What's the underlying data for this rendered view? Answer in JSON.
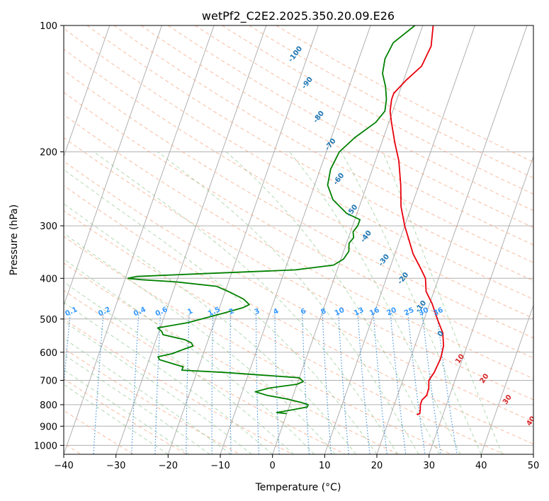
{
  "chart_data": {
    "type": "line",
    "title": "wetPf2_C2E2.2025.350.20.09.E26",
    "xlabel": "Temperature (°C)",
    "ylabel": "Pressure (hPa)",
    "xlim": [
      -40,
      50
    ],
    "ylim": [
      1050,
      100
    ],
    "yscale": "log",
    "skew": "skew-T log-P",
    "grid": true,
    "x_ticks": [
      "−40",
      "−30",
      "−20",
      "−10",
      "0",
      "10",
      "20",
      "30",
      "40",
      "50"
    ],
    "x_tick_values": [
      -40,
      -30,
      -20,
      -10,
      0,
      10,
      20,
      30,
      40,
      50
    ],
    "y_ticks": [
      "100",
      "200",
      "300",
      "400",
      "500",
      "600",
      "700",
      "800",
      "900",
      "1000"
    ],
    "y_tick_values": [
      100,
      200,
      300,
      400,
      500,
      600,
      700,
      800,
      900,
      1000
    ],
    "dry_adiabat_labels": [
      "-100",
      "-90",
      "-80",
      "-70",
      "-60",
      "-50",
      "-40",
      "-30",
      "-20",
      "-10",
      "0"
    ],
    "dry_adiabat_label_positions": [
      {
        "t": -22.5,
        "p": 117
      },
      {
        "t": -18.3,
        "p": 137
      },
      {
        "t": -13.8,
        "p": 165
      },
      {
        "t": -9.7,
        "p": 192
      },
      {
        "t": -5.8,
        "p": 232
      },
      {
        "t": -1.1,
        "p": 276
      },
      {
        "t": 3.3,
        "p": 318
      },
      {
        "t": 8.3,
        "p": 362
      },
      {
        "t": 13.2,
        "p": 400
      },
      {
        "t": 18.5,
        "p": 467
      },
      {
        "t": 24.1,
        "p": 542
      }
    ],
    "moist_adiabat_labels": [
      "10",
      "20",
      "30",
      "40"
    ],
    "moist_adiabat_label_positions": [
      {
        "t": 29.5,
        "p": 622
      },
      {
        "t": 35.5,
        "p": 693
      },
      {
        "t": 41.3,
        "p": 778
      },
      {
        "t": 47.3,
        "p": 875
      }
    ],
    "mixing_ratio_labels": [
      "0.1",
      "0.2",
      "0.4",
      "0.6",
      "1",
      "1.5",
      "2",
      "3",
      "4",
      "6",
      "8",
      "10",
      "13",
      "16",
      "20",
      "25",
      "30",
      "36"
    ],
    "mixing_ratio_values": [
      0.1,
      0.2,
      0.4,
      0.6,
      1,
      1.5,
      2,
      3,
      4,
      6,
      8,
      10,
      13,
      16,
      20,
      25,
      30,
      36
    ],
    "mixing_ratio_label_pressure": 488,
    "series": [
      {
        "color": "#e8000b",
        "points": [
          {
            "p": 100,
            "t": 2
          },
          {
            "p": 112,
            "t": 3
          },
          {
            "p": 125,
            "t": 2.5
          },
          {
            "p": 135,
            "t": 0.5
          },
          {
            "p": 145,
            "t": -1
          },
          {
            "p": 150,
            "t": -1
          },
          {
            "p": 160,
            "t": -0.5
          },
          {
            "p": 170,
            "t": 0.5
          },
          {
            "p": 190,
            "t": 2.5
          },
          {
            "p": 210,
            "t": 4.5
          },
          {
            "p": 240,
            "t": 6.5
          },
          {
            "p": 270,
            "t": 8
          },
          {
            "p": 300,
            "t": 10
          },
          {
            "p": 350,
            "t": 13.5
          },
          {
            "p": 380,
            "t": 16
          },
          {
            "p": 400,
            "t": 17.5
          },
          {
            "p": 430,
            "t": 18.5
          },
          {
            "p": 460,
            "t": 20.5
          },
          {
            "p": 500,
            "t": 22.5
          },
          {
            "p": 540,
            "t": 24.5
          },
          {
            "p": 580,
            "t": 25.5
          },
          {
            "p": 620,
            "t": 25.8
          },
          {
            "p": 670,
            "t": 25.5
          },
          {
            "p": 700,
            "t": 25
          },
          {
            "p": 730,
            "t": 25.5
          },
          {
            "p": 760,
            "t": 25.6
          },
          {
            "p": 780,
            "t": 25
          },
          {
            "p": 800,
            "t": 25
          },
          {
            "p": 820,
            "t": 25.3
          },
          {
            "p": 840,
            "t": 25.5
          },
          {
            "p": 845,
            "t": 25
          }
        ]
      },
      {
        "color": "#008000",
        "points": [
          {
            "p": 100,
            "t": -1.5
          },
          {
            "p": 110,
            "t": -4.5
          },
          {
            "p": 120,
            "t": -5
          },
          {
            "p": 130,
            "t": -4.5
          },
          {
            "p": 140,
            "t": -3
          },
          {
            "p": 150,
            "t": -2
          },
          {
            "p": 160,
            "t": -1.5
          },
          {
            "p": 170,
            "t": -2.5
          },
          {
            "p": 185,
            "t": -5.5
          },
          {
            "p": 200,
            "t": -7.5
          },
          {
            "p": 220,
            "t": -8
          },
          {
            "p": 240,
            "t": -7.5
          },
          {
            "p": 260,
            "t": -5.5
          },
          {
            "p": 280,
            "t": -2
          },
          {
            "p": 290,
            "t": 1
          },
          {
            "p": 300,
            "t": 1
          },
          {
            "p": 310,
            "t": 0.5
          },
          {
            "p": 320,
            "t": 1
          },
          {
            "p": 330,
            "t": 0.5
          },
          {
            "p": 345,
            "t": 1
          },
          {
            "p": 360,
            "t": 0.5
          },
          {
            "p": 372,
            "t": -1
          },
          {
            "p": 382,
            "t": -8
          },
          {
            "p": 392,
            "t": -30
          },
          {
            "p": 396,
            "t": -38
          },
          {
            "p": 400,
            "t": -39.5
          },
          {
            "p": 403,
            "t": -37
          },
          {
            "p": 408,
            "t": -30
          },
          {
            "p": 418,
            "t": -22
          },
          {
            "p": 432,
            "t": -19
          },
          {
            "p": 448,
            "t": -16
          },
          {
            "p": 462,
            "t": -14.5
          },
          {
            "p": 470,
            "t": -15.5
          },
          {
            "p": 485,
            "t": -19
          },
          {
            "p": 495,
            "t": -21.5
          },
          {
            "p": 510,
            "t": -25
          },
          {
            "p": 525,
            "t": -30.5
          },
          {
            "p": 535,
            "t": -29.5
          },
          {
            "p": 545,
            "t": -29
          },
          {
            "p": 560,
            "t": -24.5
          },
          {
            "p": 570,
            "t": -23
          },
          {
            "p": 580,
            "t": -22.5
          },
          {
            "p": 590,
            "t": -24
          },
          {
            "p": 605,
            "t": -26
          },
          {
            "p": 615,
            "t": -28.5
          },
          {
            "p": 625,
            "t": -28
          },
          {
            "p": 640,
            "t": -25
          },
          {
            "p": 650,
            "t": -23
          },
          {
            "p": 662,
            "t": -23
          },
          {
            "p": 670,
            "t": -15
          },
          {
            "p": 690,
            "t": 0
          },
          {
            "p": 705,
            "t": 1
          },
          {
            "p": 715,
            "t": 0
          },
          {
            "p": 730,
            "t": -5
          },
          {
            "p": 745,
            "t": -7.5
          },
          {
            "p": 760,
            "t": -5
          },
          {
            "p": 775,
            "t": -1
          },
          {
            "p": 790,
            "t": 2
          },
          {
            "p": 800,
            "t": 3.5
          },
          {
            "p": 810,
            "t": 3.5
          },
          {
            "p": 822,
            "t": 1
          },
          {
            "p": 835,
            "t": -2
          },
          {
            "p": 840,
            "t": 0
          }
        ]
      }
    ]
  }
}
